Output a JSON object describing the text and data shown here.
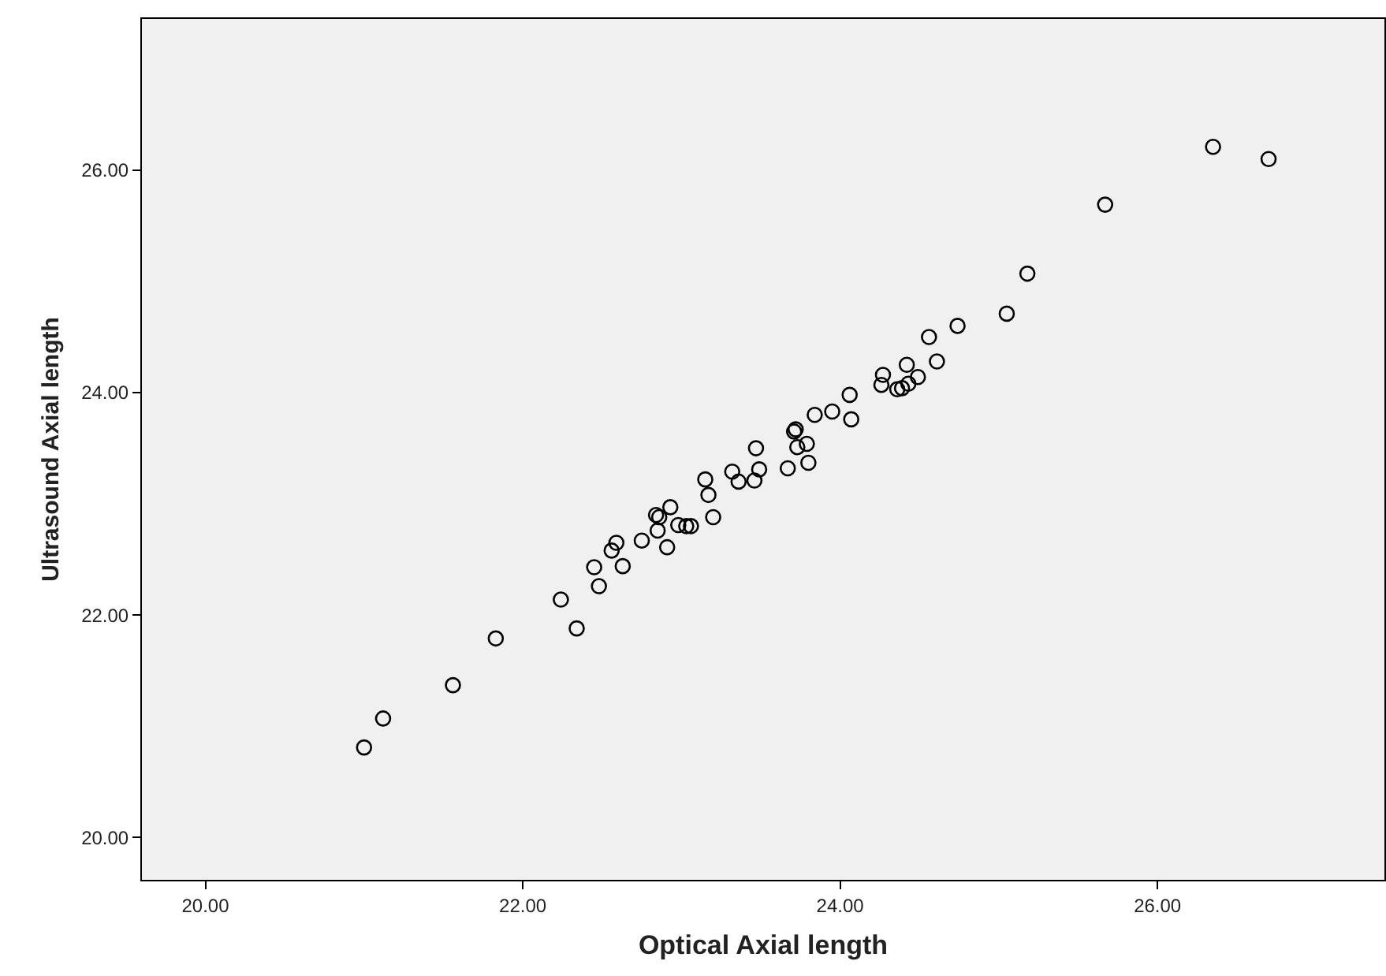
{
  "chart_data": {
    "type": "scatter",
    "xlabel": "Optical Axial length",
    "ylabel": "Ultrasound Axial length",
    "marker": "circle",
    "xlim": [
      19.6,
      27.43
    ],
    "ylim": [
      19.62,
      27.36
    ],
    "xticks": [
      {
        "value": 20,
        "label": "20.00"
      },
      {
        "value": 22,
        "label": "22.00"
      },
      {
        "value": 24,
        "label": "24.00"
      },
      {
        "value": 26,
        "label": "26.00"
      }
    ],
    "yticks": [
      {
        "value": 20,
        "label": "20.00"
      },
      {
        "value": 22,
        "label": "22.00"
      },
      {
        "value": 24,
        "label": "24.00"
      },
      {
        "value": 26,
        "label": "26.00"
      }
    ],
    "series": [
      {
        "color": "#000000",
        "x": [
          21.0,
          21.12,
          21.56,
          21.83,
          22.24,
          22.34,
          22.48,
          22.45,
          22.63,
          22.56,
          22.59,
          22.75,
          22.91,
          22.85,
          22.86,
          22.84,
          22.93,
          22.98,
          23.03,
          23.06,
          23.2,
          23.17,
          23.15,
          23.47,
          23.32,
          23.36,
          23.46,
          23.49,
          23.67,
          23.8,
          23.71,
          23.72,
          23.73,
          23.79,
          23.84,
          23.95,
          24.06,
          24.07,
          24.27,
          24.26,
          24.36,
          24.39,
          24.43,
          24.42,
          24.49,
          24.61,
          24.56,
          24.74,
          25.05,
          25.18,
          25.67,
          26.35,
          26.7
        ],
        "values": [
          20.81,
          21.07,
          21.37,
          21.79,
          22.14,
          21.88,
          22.26,
          22.43,
          22.44,
          22.58,
          22.65,
          22.67,
          22.61,
          22.76,
          22.88,
          22.9,
          22.97,
          22.81,
          22.8,
          22.8,
          22.88,
          23.08,
          23.22,
          23.5,
          23.29,
          23.2,
          23.21,
          23.31,
          23.32,
          23.37,
          23.65,
          23.67,
          23.51,
          23.54,
          23.8,
          23.83,
          23.98,
          23.76,
          24.16,
          24.07,
          24.03,
          24.04,
          24.08,
          24.25,
          24.14,
          24.28,
          24.5,
          24.6,
          24.71,
          25.07,
          25.69,
          26.21,
          26.1
        ]
      }
    ]
  }
}
